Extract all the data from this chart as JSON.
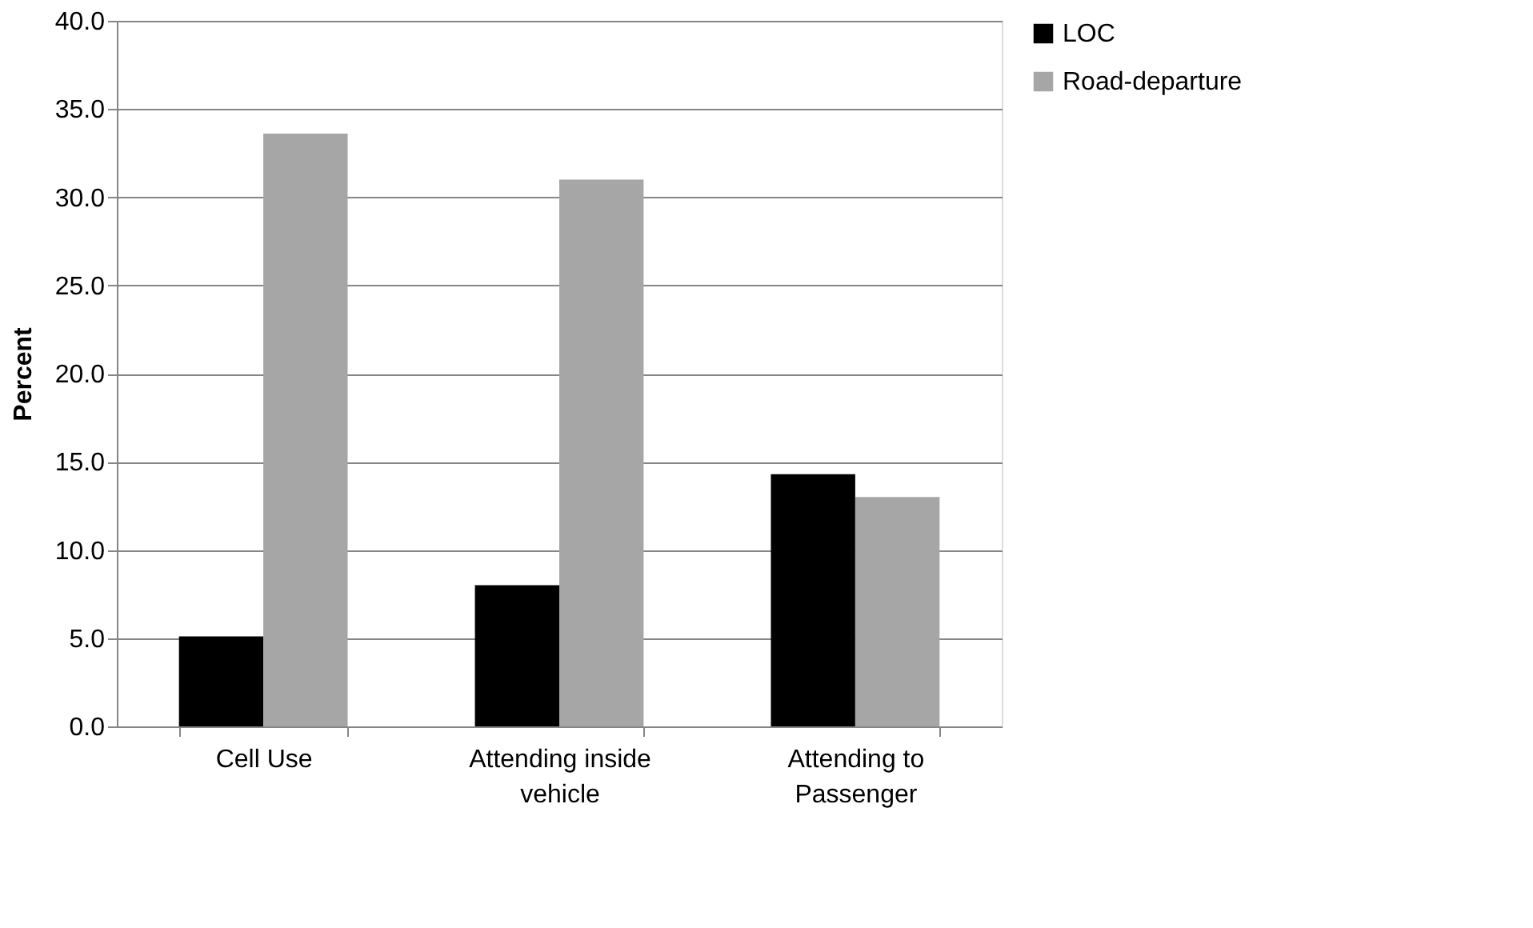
{
  "chart_data": {
    "type": "bar",
    "ylabel": "Percent",
    "categories": [
      "Cell Use",
      "Attending inside vehicle",
      "Attending to Passenger"
    ],
    "series": [
      {
        "name": "LOC",
        "color": "#000000",
        "values": [
          5.1,
          8.0,
          14.3
        ]
      },
      {
        "name": "Road-departure",
        "color": "#a6a6a6",
        "values": [
          33.6,
          31.0,
          13.0
        ]
      }
    ],
    "ylim": [
      0,
      40
    ],
    "yticks": [
      {
        "value": 0,
        "label": "0.0"
      },
      {
        "value": 5,
        "label": "5.0"
      },
      {
        "value": 10,
        "label": "10.0"
      },
      {
        "value": 15,
        "label": "15.0"
      },
      {
        "value": 20,
        "label": "20.0"
      },
      {
        "value": 25,
        "label": "25.0"
      },
      {
        "value": 30,
        "label": "30.0"
      },
      {
        "value": 35,
        "label": "35.0"
      },
      {
        "value": 40,
        "label": "40.0"
      }
    ],
    "grid": "y",
    "legend": "right"
  }
}
